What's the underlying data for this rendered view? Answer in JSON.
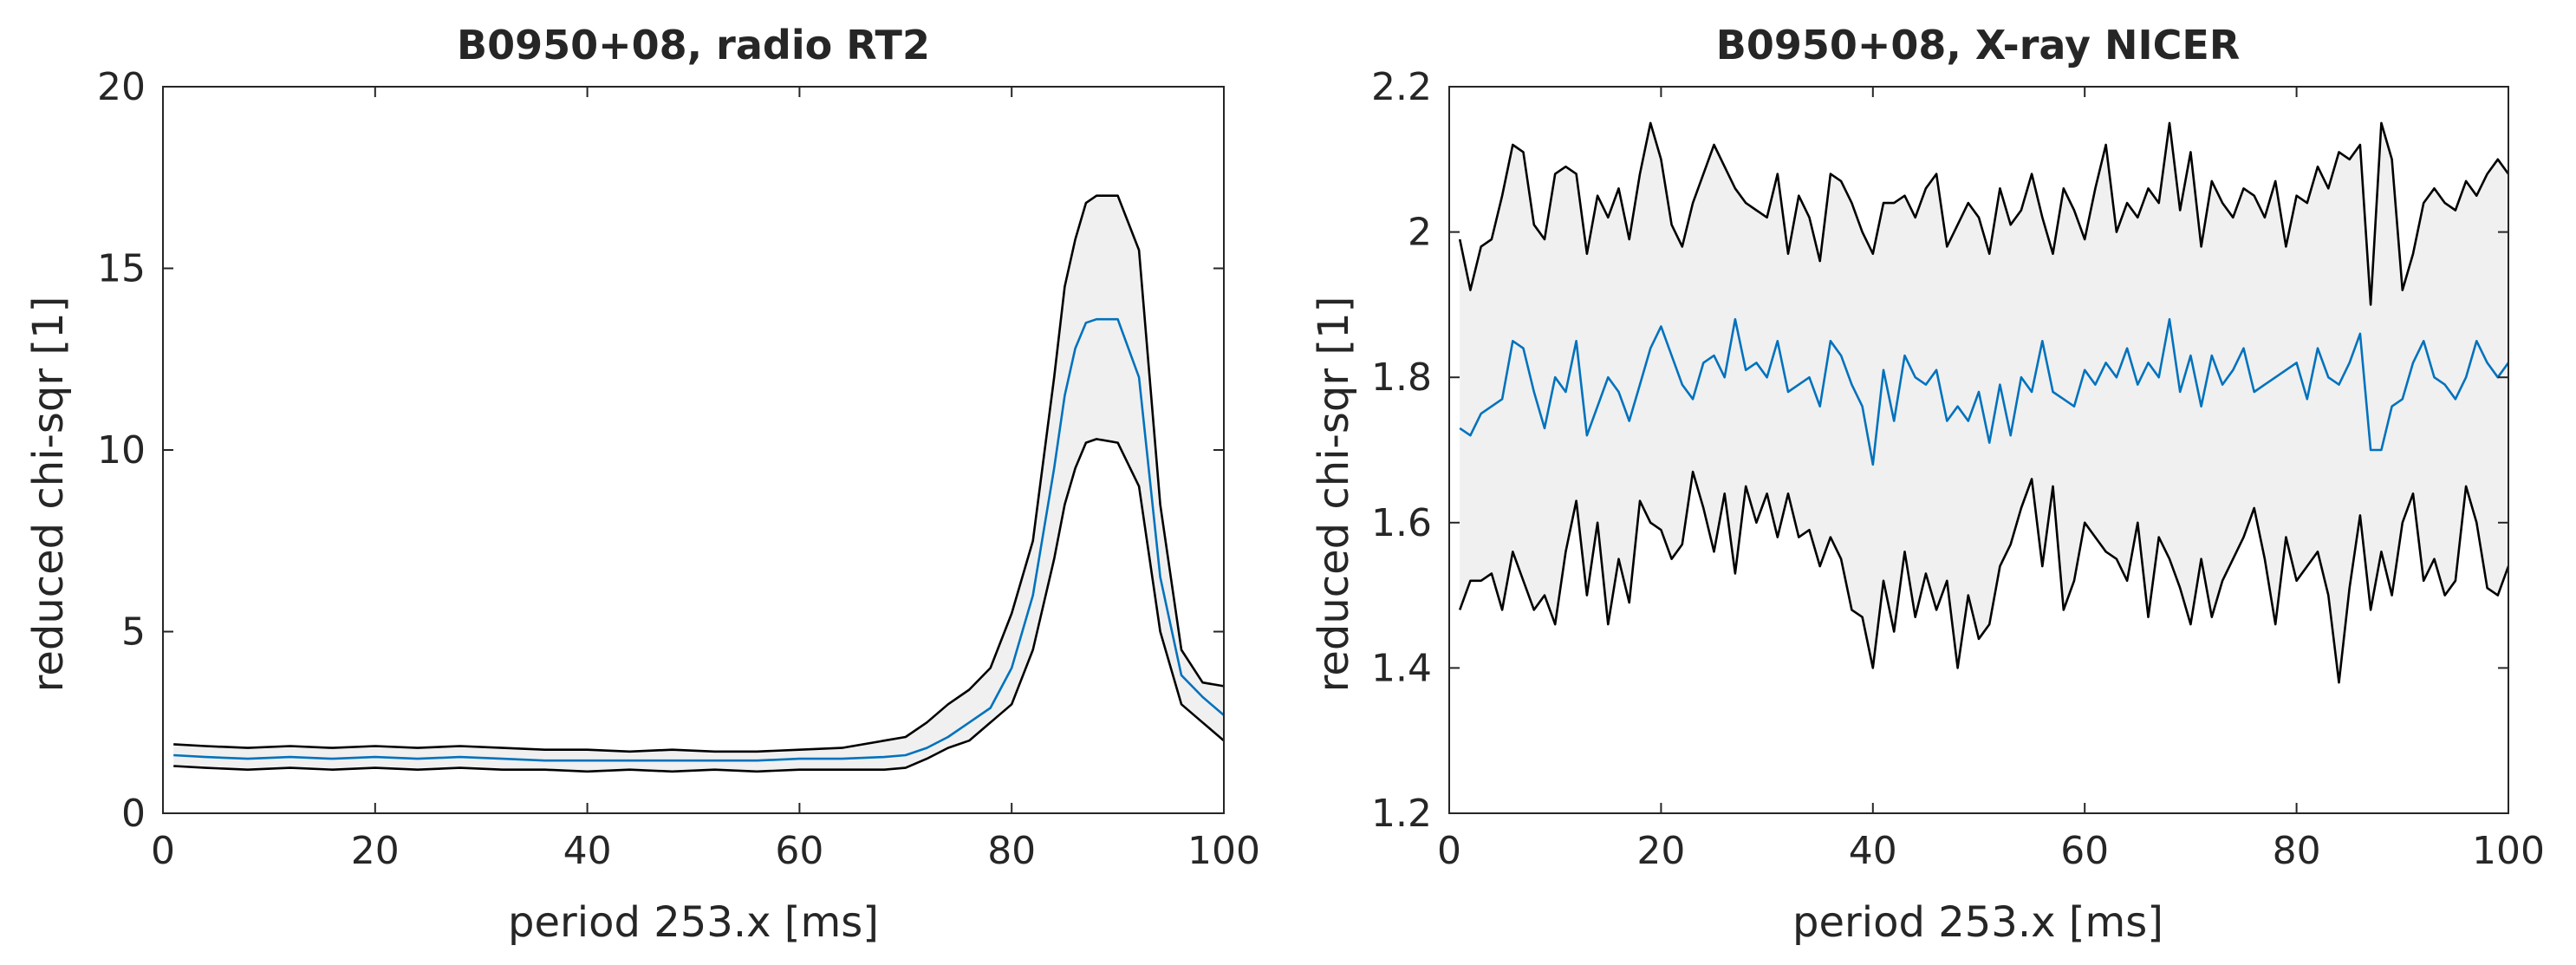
{
  "chart_data": [
    {
      "type": "line",
      "title": "B0950+08, radio RT2",
      "xlabel": "period 253.x [ms]",
      "ylabel": "reduced chi-sqr [1]",
      "xlim": [
        0,
        100
      ],
      "ylim": [
        0,
        20
      ],
      "xticks": [
        "0",
        "20",
        "40",
        "60",
        "80",
        "100"
      ],
      "yticks": [
        "0",
        "5",
        "10",
        "15",
        "20"
      ],
      "grid": false,
      "x": [
        1,
        4,
        8,
        12,
        16,
        20,
        24,
        28,
        32,
        36,
        40,
        44,
        48,
        52,
        56,
        60,
        64,
        68,
        70,
        72,
        74,
        76,
        78,
        80,
        82,
        84,
        85,
        86,
        87,
        88,
        90,
        92,
        94,
        96,
        98,
        100
      ],
      "series": [
        {
          "name": "upper",
          "color": "#000000",
          "values": [
            1.9,
            1.85,
            1.8,
            1.85,
            1.8,
            1.85,
            1.8,
            1.85,
            1.8,
            1.75,
            1.75,
            1.7,
            1.75,
            1.7,
            1.7,
            1.75,
            1.8,
            2.0,
            2.1,
            2.5,
            3.0,
            3.4,
            4.0,
            5.5,
            7.5,
            12.0,
            14.5,
            15.8,
            16.8,
            17.0,
            17.0,
            15.5,
            8.5,
            4.5,
            3.6,
            3.5
          ]
        },
        {
          "name": "mean",
          "color": "#0072bd",
          "values": [
            1.6,
            1.55,
            1.5,
            1.55,
            1.5,
            1.55,
            1.5,
            1.55,
            1.5,
            1.45,
            1.45,
            1.45,
            1.45,
            1.45,
            1.45,
            1.5,
            1.5,
            1.55,
            1.6,
            1.8,
            2.1,
            2.5,
            2.9,
            4.0,
            6.0,
            9.5,
            11.5,
            12.8,
            13.5,
            13.6,
            13.6,
            12.0,
            6.5,
            3.8,
            3.2,
            2.7
          ]
        },
        {
          "name": "lower",
          "color": "#000000",
          "values": [
            1.3,
            1.25,
            1.2,
            1.25,
            1.2,
            1.25,
            1.2,
            1.25,
            1.2,
            1.2,
            1.15,
            1.2,
            1.15,
            1.2,
            1.15,
            1.2,
            1.2,
            1.2,
            1.25,
            1.5,
            1.8,
            2.0,
            2.5,
            3.0,
            4.5,
            7.0,
            8.5,
            9.5,
            10.2,
            10.3,
            10.2,
            9.0,
            5.0,
            3.0,
            2.5,
            2.0
          ]
        }
      ]
    },
    {
      "type": "line",
      "title": "B0950+08, X-ray NICER",
      "xlabel": "period 253.x [ms]",
      "ylabel": "reduced chi-sqr [1]",
      "xlim": [
        0,
        100
      ],
      "ylim": [
        1.2,
        2.2
      ],
      "xticks": [
        "0",
        "20",
        "40",
        "60",
        "80",
        "100"
      ],
      "yticks": [
        "1.2",
        "1.4",
        "1.6",
        "1.8",
        "2",
        "2.2"
      ],
      "grid": false,
      "x": [
        1,
        2,
        3,
        4,
        5,
        6,
        7,
        8,
        9,
        10,
        11,
        12,
        13,
        14,
        15,
        16,
        17,
        18,
        19,
        20,
        21,
        22,
        23,
        24,
        25,
        26,
        27,
        28,
        29,
        30,
        31,
        32,
        33,
        34,
        35,
        36,
        37,
        38,
        39,
        40,
        41,
        42,
        43,
        44,
        45,
        46,
        47,
        48,
        49,
        50,
        51,
        52,
        53,
        54,
        55,
        56,
        57,
        58,
        59,
        60,
        61,
        62,
        63,
        64,
        65,
        66,
        67,
        68,
        69,
        70,
        71,
        72,
        73,
        74,
        75,
        76,
        77,
        78,
        79,
        80,
        81,
        82,
        83,
        84,
        85,
        86,
        87,
        88,
        89,
        90,
        91,
        92,
        93,
        94,
        95,
        96,
        97,
        98,
        99,
        100
      ],
      "series": [
        {
          "name": "upper",
          "color": "#000000",
          "values": [
            1.99,
            1.92,
            1.98,
            1.99,
            2.05,
            2.12,
            2.11,
            2.01,
            1.99,
            2.08,
            2.09,
            2.08,
            1.97,
            2.05,
            2.02,
            2.06,
            1.99,
            2.08,
            2.15,
            2.1,
            2.01,
            1.98,
            2.04,
            2.08,
            2.12,
            2.09,
            2.06,
            2.04,
            2.03,
            2.02,
            2.08,
            1.97,
            2.05,
            2.02,
            1.96,
            2.08,
            2.07,
            2.04,
            2.0,
            1.97,
            2.04,
            2.04,
            2.05,
            2.02,
            2.06,
            2.08,
            1.98,
            2.01,
            2.04,
            2.02,
            1.97,
            2.06,
            2.01,
            2.03,
            2.08,
            2.02,
            1.97,
            2.06,
            2.03,
            1.99,
            2.06,
            2.12,
            2.0,
            2.04,
            2.02,
            2.06,
            2.04,
            2.15,
            2.03,
            2.11,
            1.98,
            2.07,
            2.04,
            2.02,
            2.06,
            2.05,
            2.02,
            2.07,
            1.98,
            2.05,
            2.04,
            2.09,
            2.06,
            2.11,
            2.1,
            2.12,
            1.9,
            2.15,
            2.1,
            1.92,
            1.97,
            2.04,
            2.06,
            2.04,
            2.03,
            2.07,
            2.05,
            2.08,
            2.1,
            2.08
          ]
        },
        {
          "name": "mean",
          "color": "#0072bd",
          "values": [
            1.73,
            1.72,
            1.75,
            1.76,
            1.77,
            1.85,
            1.84,
            1.78,
            1.73,
            1.8,
            1.78,
            1.85,
            1.72,
            1.76,
            1.8,
            1.78,
            1.74,
            1.79,
            1.84,
            1.87,
            1.83,
            1.79,
            1.77,
            1.82,
            1.83,
            1.8,
            1.88,
            1.81,
            1.82,
            1.8,
            1.85,
            1.78,
            1.79,
            1.8,
            1.76,
            1.85,
            1.83,
            1.79,
            1.76,
            1.68,
            1.81,
            1.74,
            1.83,
            1.8,
            1.79,
            1.81,
            1.74,
            1.76,
            1.74,
            1.78,
            1.71,
            1.79,
            1.72,
            1.8,
            1.78,
            1.85,
            1.78,
            1.77,
            1.76,
            1.81,
            1.79,
            1.82,
            1.8,
            1.84,
            1.79,
            1.82,
            1.8,
            1.88,
            1.78,
            1.83,
            1.76,
            1.83,
            1.79,
            1.81,
            1.84,
            1.78,
            1.79,
            1.8,
            1.81,
            1.82,
            1.77,
            1.84,
            1.8,
            1.79,
            1.82,
            1.86,
            1.7,
            1.7,
            1.76,
            1.77,
            1.82,
            1.85,
            1.8,
            1.79,
            1.77,
            1.8,
            1.85,
            1.82,
            1.8,
            1.82
          ]
        },
        {
          "name": "lower",
          "color": "#000000",
          "values": [
            1.48,
            1.52,
            1.52,
            1.53,
            1.48,
            1.56,
            1.52,
            1.48,
            1.5,
            1.46,
            1.56,
            1.63,
            1.5,
            1.6,
            1.46,
            1.55,
            1.49,
            1.63,
            1.6,
            1.59,
            1.55,
            1.57,
            1.67,
            1.62,
            1.56,
            1.64,
            1.53,
            1.65,
            1.6,
            1.64,
            1.58,
            1.64,
            1.58,
            1.59,
            1.54,
            1.58,
            1.55,
            1.48,
            1.47,
            1.4,
            1.52,
            1.45,
            1.56,
            1.47,
            1.53,
            1.48,
            1.52,
            1.4,
            1.5,
            1.44,
            1.46,
            1.54,
            1.57,
            1.62,
            1.66,
            1.54,
            1.65,
            1.48,
            1.52,
            1.6,
            1.58,
            1.56,
            1.55,
            1.52,
            1.6,
            1.47,
            1.58,
            1.55,
            1.51,
            1.46,
            1.55,
            1.47,
            1.52,
            1.55,
            1.58,
            1.62,
            1.55,
            1.46,
            1.58,
            1.52,
            1.54,
            1.56,
            1.5,
            1.38,
            1.51,
            1.61,
            1.48,
            1.56,
            1.5,
            1.6,
            1.64,
            1.52,
            1.55,
            1.5,
            1.52,
            1.65,
            1.6,
            1.51,
            1.5,
            1.54
          ]
        }
      ]
    }
  ]
}
